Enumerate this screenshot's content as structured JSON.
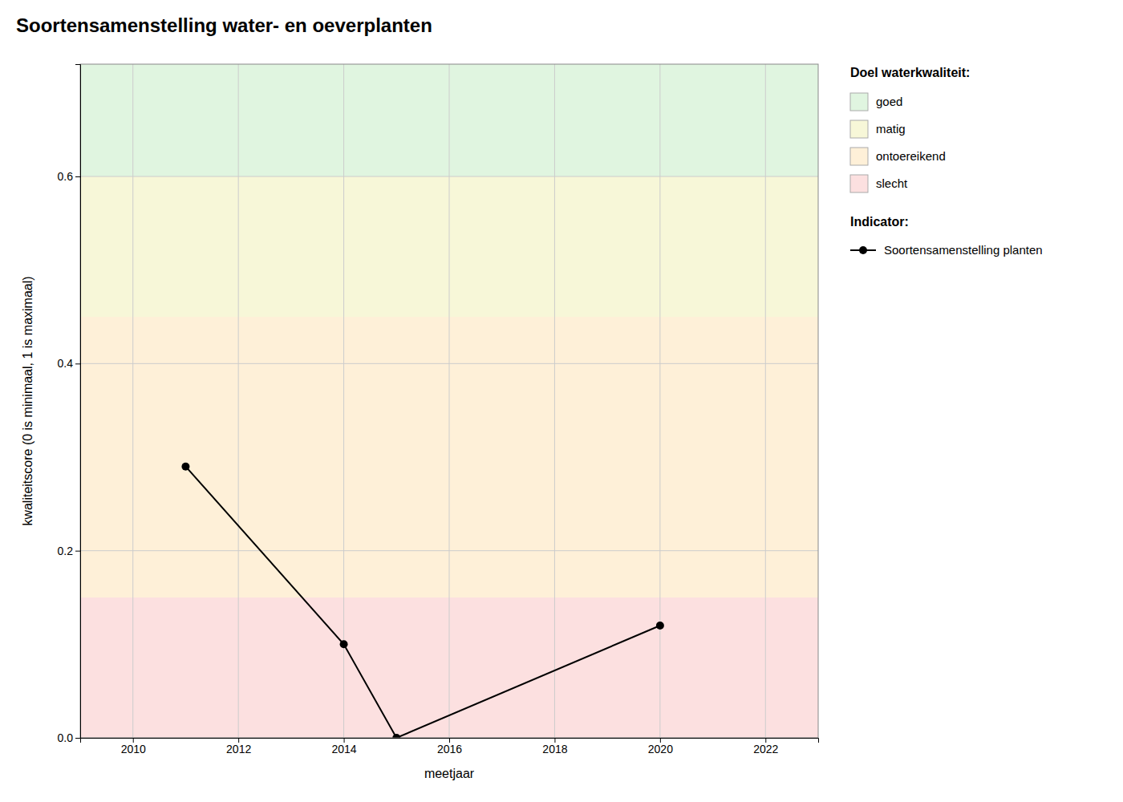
{
  "chart_data": {
    "type": "line",
    "title": "Soortensamenstelling water- en oeverplanten",
    "xlabel": "meetjaar",
    "ylabel": "kwaliteitscore (0 is minimaal, 1 is maximaal)",
    "x": [
      2011,
      2014,
      2015,
      2020
    ],
    "series": [
      {
        "name": "Soortensamenstelling planten",
        "color": "#000000",
        "marker": "circle",
        "line_style": "solid",
        "values": [
          0.29,
          0.1,
          0,
          0.12
        ]
      }
    ],
    "xlim": [
      2009,
      2023
    ],
    "ylim": [
      0,
      0.72
    ],
    "xticks": [
      2010,
      2012,
      2014,
      2016,
      2018,
      2020,
      2022
    ],
    "yticks": [
      {
        "value": 0,
        "label": "0.0"
      },
      0.2,
      0.4,
      0.6
    ],
    "bands_title": "Doel waterkwaliteit:",
    "bands": [
      {
        "name": "goed",
        "from": 0.6,
        "to": 0.72,
        "color": "#e0f5e0"
      },
      {
        "name": "matig",
        "from": 0.45,
        "to": 0.6,
        "color": "#f7f7d8"
      },
      {
        "name": "ontoereikend",
        "from": 0.15,
        "to": 0.45,
        "color": "#fef0d8"
      },
      {
        "name": "slecht",
        "from": 0,
        "to": 0.15,
        "color": "#fce0e0"
      }
    ],
    "series_title": "Indicator:",
    "grid": true,
    "legend": "right"
  }
}
